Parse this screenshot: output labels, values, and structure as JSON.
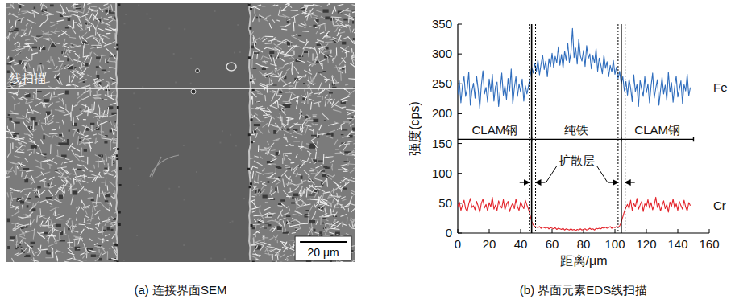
{
  "image_panel": {
    "caption": "(a) 连接界面SEM",
    "line_label": "线扫描",
    "scale_bar": {
      "value": 20,
      "label": "20 μm"
    }
  },
  "chart_data": {
    "type": "line",
    "caption": "(b) 界面元素EDS线扫描",
    "x_label": "距离/μm",
    "y_label": "强度(cps)",
    "x": [
      0,
      1,
      2,
      3,
      4,
      5,
      6,
      7,
      8,
      9,
      10,
      11,
      12,
      13,
      14,
      15,
      16,
      17,
      18,
      19,
      20,
      21,
      22,
      23,
      24,
      25,
      26,
      27,
      28,
      29,
      30,
      31,
      32,
      33,
      34,
      35,
      36,
      37,
      38,
      39,
      40,
      41,
      42,
      43,
      44,
      45,
      46,
      47,
      48,
      49,
      50,
      51,
      52,
      53,
      54,
      55,
      56,
      57,
      58,
      59,
      60,
      61,
      62,
      63,
      64,
      65,
      66,
      67,
      68,
      69,
      70,
      71,
      72,
      73,
      74,
      75,
      76,
      77,
      78,
      79,
      80,
      81,
      82,
      83,
      84,
      85,
      86,
      87,
      88,
      89,
      90,
      91,
      92,
      93,
      94,
      95,
      96,
      97,
      98,
      99,
      100,
      101,
      102,
      103,
      104,
      105,
      106,
      107,
      108,
      109,
      110,
      111,
      112,
      113,
      114,
      115,
      116,
      117,
      118,
      119,
      120,
      121,
      122,
      123,
      124,
      125,
      126,
      127,
      128,
      129,
      130,
      131,
      132,
      133,
      134,
      135,
      136,
      137,
      138,
      139,
      140,
      141,
      142,
      143,
      144,
      145,
      146,
      147,
      148
    ],
    "series": [
      {
        "name": "Fe",
        "color": "#2f6dbd",
        "values": [
          232,
          255,
          218,
          247,
          262,
          229,
          241,
          270,
          214,
          238,
          251,
          226,
          263,
          240,
          209,
          248,
          272,
          233,
          244,
          219,
          258,
          237,
          266,
          221,
          245,
          253,
          212,
          240,
          268,
          231,
          247,
          224,
          259,
          238,
          275,
          216,
          243,
          262,
          229,
          250,
          236,
          258,
          221,
          247,
          233,
          246,
          262,
          278,
          268,
          284,
          271,
          290,
          265,
          283,
          298,
          274,
          288,
          262,
          292,
          279,
          301,
          277,
          296,
          285,
          312,
          281,
          299,
          276,
          305,
          289,
          318,
          286,
          302,
          343,
          294,
          310,
          283,
          325,
          297,
          288,
          306,
          279,
          314,
          292,
          300,
          275,
          297,
          285,
          309,
          271,
          293,
          282,
          267,
          298,
          276,
          287,
          262,
          281,
          270,
          289,
          266,
          278,
          259,
          271,
          250,
          262,
          238,
          254,
          231,
          258,
          243,
          220,
          265,
          237,
          249,
          212,
          256,
          241,
          229,
          262,
          235,
          250,
          218,
          247,
          268,
          226,
          243,
          257,
          214,
          239,
          261,
          233,
          248,
          222,
          270,
          236,
          252,
          219,
          245,
          263,
          228,
          241,
          255,
          217,
          249,
          238,
          266,
          230,
          244
        ]
      },
      {
        "name": "Cr",
        "color": "#e3242b",
        "values": [
          44,
          52,
          38,
          47,
          55,
          41,
          36,
          49,
          58,
          43,
          46,
          39,
          53,
          45,
          35,
          50,
          57,
          42,
          48,
          37,
          51,
          44,
          60,
          40,
          47,
          38,
          54,
          46,
          42,
          56,
          39,
          48,
          53,
          36,
          45,
          50,
          41,
          57,
          44,
          38,
          52,
          46,
          41,
          55,
          47,
          40,
          30,
          20,
          14,
          11,
          10,
          9,
          11,
          8,
          10,
          9,
          8,
          10,
          7,
          9,
          8,
          7,
          9,
          6,
          8,
          7,
          6,
          8,
          5,
          7,
          6,
          5,
          7,
          5,
          6,
          4,
          6,
          5,
          7,
          5,
          6,
          7,
          5,
          6,
          8,
          6,
          7,
          5,
          8,
          7,
          8,
          7,
          9,
          8,
          10,
          8,
          9,
          11,
          8,
          10,
          9,
          11,
          10,
          12,
          18,
          27,
          36,
          43,
          48,
          41,
          55,
          38,
          50,
          44,
          58,
          40,
          47,
          53,
          36,
          49,
          45,
          56,
          42,
          51,
          39,
          47,
          60,
          43,
          50,
          37,
          46,
          54,
          41,
          48,
          35,
          52,
          45,
          57,
          42,
          49,
          38,
          53,
          46,
          40,
          55,
          44,
          37,
          51,
          46
        ]
      }
    ],
    "xlim": [
      0,
      160
    ],
    "ylim": [
      0,
      350
    ],
    "xticks": [
      0,
      20,
      40,
      60,
      80,
      100,
      120,
      140,
      160
    ],
    "yticks": [
      0,
      50,
      100,
      150,
      200,
      250,
      300,
      350
    ],
    "grid": false,
    "annotations": {
      "regions": [
        {
          "label": "CLAM钢",
          "x": [
            0,
            47
          ]
        },
        {
          "label": "纯铁",
          "x": [
            47,
            104
          ]
        },
        {
          "label": "CLAM钢",
          "x": [
            104,
            150
          ]
        }
      ],
      "label_line_y": 157,
      "boundaries": [
        47,
        104
      ],
      "diffusion_layers": [
        [
          45.5,
          49.5
        ],
        [
          102,
          106.5
        ]
      ],
      "diffusion_label": "扩散层"
    }
  }
}
